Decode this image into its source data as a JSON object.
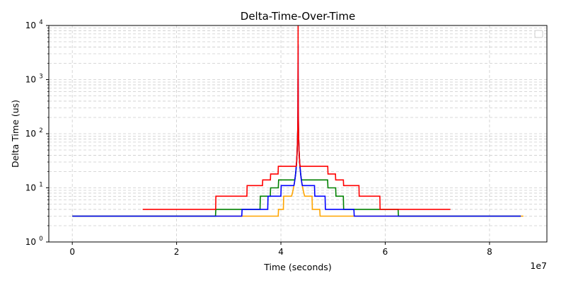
{
  "chart_data": {
    "type": "line",
    "title": "Delta-Time-Over-Time",
    "xlabel": "Time (seconds)",
    "ylabel": "Delta Time (us)",
    "x_offset_label": "1e7",
    "x_scale": "linear",
    "y_scale": "log",
    "xlim": [
      -0.45,
      9.1
    ],
    "ylim": [
      1,
      10000
    ],
    "x_ticks": [
      0,
      2,
      4,
      6,
      8
    ],
    "x_tick_labels": [
      "0",
      "2",
      "4",
      "6",
      "8"
    ],
    "y_ticks": [
      1,
      10,
      100,
      1000,
      10000
    ],
    "y_tick_labels": [
      "10",
      "10",
      "10",
      "10",
      "10"
    ],
    "y_tick_exponents": [
      "0",
      "1",
      "2",
      "3",
      "4"
    ],
    "grid": true,
    "grid_style": "dashed",
    "legend": "top-right",
    "peak_x": 4.33,
    "colors": {
      "grid": "#cccccc"
    },
    "series": [
      {
        "color": "#ffa500",
        "x_range": [
          0,
          8.65
        ],
        "peak": 150,
        "plateaus": [
          {
            "x": [
              0,
              8.65
            ],
            "y": 3
          },
          {
            "x": [
              3.95,
              4.75
            ],
            "y": 4
          },
          {
            "x": [
              4.05,
              4.6
            ],
            "y": 7
          }
        ]
      },
      {
        "color": "#008000",
        "x_range": [
          0,
          8.6
        ],
        "peak": 300,
        "plateaus": [
          {
            "x": [
              0,
              8.6
            ],
            "y": 3
          },
          {
            "x": [
              2.75,
              6.25
            ],
            "y": 4
          },
          {
            "x": [
              3.6,
              5.2
            ],
            "y": 7
          },
          {
            "x": [
              3.8,
              5.05
            ],
            "y": 10
          },
          {
            "x": [
              3.95,
              4.9
            ],
            "y": 14
          }
        ]
      },
      {
        "color": "#0000ff",
        "x_range": [
          0,
          8.6
        ],
        "peak": 4500,
        "plateaus": [
          {
            "x": [
              0,
              8.6
            ],
            "y": 3
          },
          {
            "x": [
              3.25,
              5.4
            ],
            "y": 4
          },
          {
            "x": [
              3.75,
              4.85
            ],
            "y": 7
          },
          {
            "x": [
              4.0,
              4.65
            ],
            "y": 11
          }
        ]
      },
      {
        "color": "#ff0000",
        "x_range": [
          1.35,
          7.25
        ],
        "peak": 10000,
        "plateaus": [
          {
            "x": [
              1.35,
              7.25
            ],
            "y": 4
          },
          {
            "x": [
              2.75,
              5.9
            ],
            "y": 7
          },
          {
            "x": [
              3.35,
              5.5
            ],
            "y": 11
          },
          {
            "x": [
              3.65,
              5.2
            ],
            "y": 14
          },
          {
            "x": [
              3.8,
              5.05
            ],
            "y": 18
          },
          {
            "x": [
              3.95,
              4.9
            ],
            "y": 25
          }
        ]
      }
    ]
  }
}
